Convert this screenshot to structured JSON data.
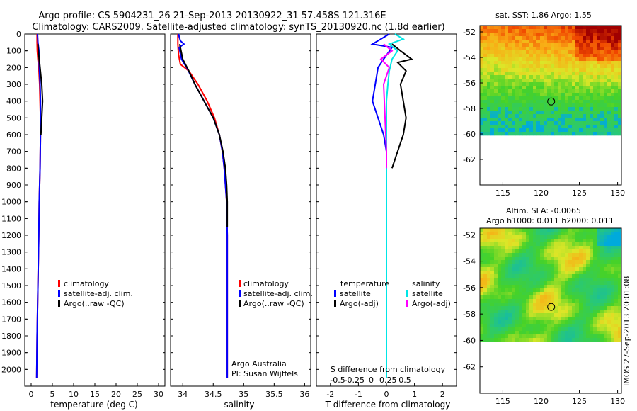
{
  "title": {
    "line1": "Argo profile: CS 5904231_26 21-Sep-2013 20130922_31 57.458S 121.316E",
    "line2": "Climatology: CARS2009. Satellite-adjusted climatology: synTS_20130920.nc (1.8d earlier)"
  },
  "chart_data": [
    {
      "type": "line",
      "id": "temperature",
      "xlabel": "temperature (deg C)",
      "xlim": [
        -1.5,
        31.5
      ],
      "xticks": [
        0,
        5,
        10,
        15,
        20,
        25,
        30
      ],
      "ylim": [
        2100,
        0
      ],
      "yticks": [
        0,
        100,
        200,
        300,
        400,
        500,
        600,
        700,
        800,
        900,
        1000,
        1100,
        1200,
        1300,
        1400,
        1500,
        1600,
        1700,
        1800,
        1900,
        2000
      ],
      "legend": [
        "climatology",
        "satellite-adj. clim.",
        "Argo(..raw -QC)"
      ],
      "series": [
        {
          "name": "climatology",
          "color": "#ff0000",
          "x": [
            1.4,
            1.4,
            1.45,
            1.6,
            1.8,
            2.0,
            2.1,
            2.2,
            2.2,
            2.15,
            2.1,
            2.0,
            1.9,
            1.8,
            1.6,
            1.4,
            1.3
          ],
          "y": [
            0,
            50,
            100,
            150,
            200,
            300,
            400,
            500,
            600,
            700,
            800,
            900,
            1000,
            1200,
            1500,
            1800,
            2050
          ]
        },
        {
          "name": "satellite-adj. clim.",
          "color": "#0000ff",
          "x": [
            1.5,
            1.6,
            1.8,
            1.9,
            1.9,
            2.1,
            2.2,
            2.2,
            2.2,
            2.15,
            2.1,
            2.0,
            1.9,
            1.8,
            1.6,
            1.4,
            1.3
          ],
          "y": [
            0,
            50,
            90,
            120,
            180,
            300,
            400,
            500,
            600,
            700,
            800,
            900,
            1000,
            1200,
            1500,
            1800,
            2050
          ]
        },
        {
          "name": "Argo(..raw -QC)",
          "color": "#000000",
          "x": [
            1.6,
            1.7,
            1.9,
            2.1,
            2.3,
            2.5,
            2.6,
            2.7,
            2.6,
            2.5,
            2.4,
            2.3
          ],
          "y": [
            60,
            100,
            150,
            200,
            250,
            300,
            350,
            400,
            450,
            500,
            550,
            600
          ]
        }
      ]
    },
    {
      "type": "line",
      "id": "salinity",
      "xlabel": "salinity",
      "xlim": [
        33.8,
        36.1
      ],
      "xticks": [
        34,
        34.5,
        35,
        35.5,
        36
      ],
      "ylim": [
        2100,
        0
      ],
      "legend": [
        "climatology",
        "satellite-adj. clim.",
        "Argo(..raw -QC)"
      ],
      "annotation": [
        "Argo Australia",
        "PI: Susan Wijffels"
      ],
      "series": [
        {
          "name": "climatology",
          "color": "#ff0000",
          "x": [
            33.92,
            33.92,
            33.93,
            33.96,
            34.1,
            34.25,
            34.4,
            34.52,
            34.6,
            34.65,
            34.68,
            34.7,
            34.72,
            34.73,
            34.73,
            34.73
          ],
          "y": [
            0,
            60,
            120,
            180,
            220,
            300,
            400,
            500,
            600,
            700,
            800,
            900,
            1000,
            1200,
            1600,
            2050
          ]
        },
        {
          "name": "satellite-adj. clim.",
          "color": "#0000ff",
          "x": [
            33.93,
            33.96,
            34.02,
            33.94,
            33.98,
            34.08,
            34.2,
            34.35,
            34.5,
            34.6,
            34.65,
            34.68,
            34.7,
            34.72,
            34.73,
            34.73,
            34.73
          ],
          "y": [
            0,
            40,
            60,
            80,
            150,
            210,
            300,
            400,
            500,
            600,
            700,
            800,
            900,
            1000,
            1200,
            1600,
            2050
          ]
        },
        {
          "name": "Argo(..raw -QC)",
          "color": "#000000",
          "x": [
            33.95,
            34.0,
            34.1,
            34.2,
            34.35,
            34.5,
            34.6,
            34.66,
            34.7,
            34.72,
            34.73,
            34.73
          ],
          "y": [
            60,
            150,
            220,
            300,
            400,
            500,
            600,
            700,
            800,
            900,
            1000,
            1150
          ]
        }
      ]
    },
    {
      "type": "line",
      "id": "difference",
      "xlabel": "T difference from climatology",
      "xlabel_top": "S difference from climatology",
      "xlim": [
        -2.5,
        2.5
      ],
      "xticks": [
        -2,
        -1,
        0,
        1,
        2
      ],
      "xticks_top": [
        -0.5,
        -0.25,
        0,
        0.25,
        0.5
      ],
      "ylim": [
        2100,
        0
      ],
      "legend_headers": [
        "temperature",
        "salinity"
      ],
      "legend": [
        "satellite",
        "Argo(-adj)",
        "satellite",
        "Argo(-adj)"
      ],
      "series": [
        {
          "name": "temperature satellite",
          "color": "#0000ff",
          "x": [
            0.1,
            -0.2,
            -0.5,
            0.2,
            -0.1,
            -0.3,
            -0.4,
            -0.5,
            -0.3,
            -0.1,
            0.0,
            0.0
          ],
          "y": [
            0,
            30,
            60,
            80,
            150,
            200,
            300,
            400,
            500,
            600,
            700,
            2050
          ]
        },
        {
          "name": "temperature Argo(-adj)",
          "color": "#000000",
          "x": [
            0.2,
            0.5,
            0.9,
            0.4,
            0.7,
            0.5,
            0.6,
            0.7,
            0.6,
            0.4,
            0.2
          ],
          "y": [
            60,
            100,
            150,
            170,
            220,
            300,
            400,
            500,
            600,
            700,
            800
          ]
        },
        {
          "name": "salinity satellite",
          "color": "#00e6e6",
          "x": [
            0.3,
            0.6,
            0.1,
            0.4,
            0.2,
            0.1,
            0.05,
            0.0,
            0.0
          ],
          "y": [
            0,
            30,
            60,
            100,
            150,
            220,
            300,
            400,
            2050
          ]
        },
        {
          "name": "salinity Argo(-adj)",
          "color": "#ff00ff",
          "x": [
            -0.1,
            0.2,
            -0.2,
            0.1,
            -0.1,
            -0.05,
            0.0,
            0.0
          ],
          "y": [
            60,
            100,
            150,
            200,
            300,
            500,
            700,
            800
          ]
        }
      ]
    },
    {
      "type": "heatmap",
      "id": "sst-map",
      "title": "sat. SST: 1.86  Argo: 1.55",
      "xlim": [
        112,
        130.5
      ],
      "ylim": [
        -64,
        -51.5
      ],
      "xticks": [
        115,
        120,
        125,
        130
      ],
      "yticks": [
        -52,
        -54,
        -56,
        -58,
        -60,
        -62
      ],
      "marker": {
        "lon": 121.316,
        "lat": -57.458
      }
    },
    {
      "type": "heatmap",
      "id": "sla-map",
      "title": "Altim. SLA: -0.0065",
      "subtitle": "Argo h1000: 0.011  h2000: 0.011",
      "xlim": [
        112,
        130.5
      ],
      "ylim": [
        -64,
        -51.5
      ],
      "xticks": [
        115,
        120,
        125,
        130
      ],
      "yticks": [
        -52,
        -54,
        -56,
        -58,
        -60,
        -62
      ],
      "marker": {
        "lon": 121.316,
        "lat": -57.458
      }
    }
  ],
  "footer": "IMOS 27-Sep-2013 20:01:08"
}
